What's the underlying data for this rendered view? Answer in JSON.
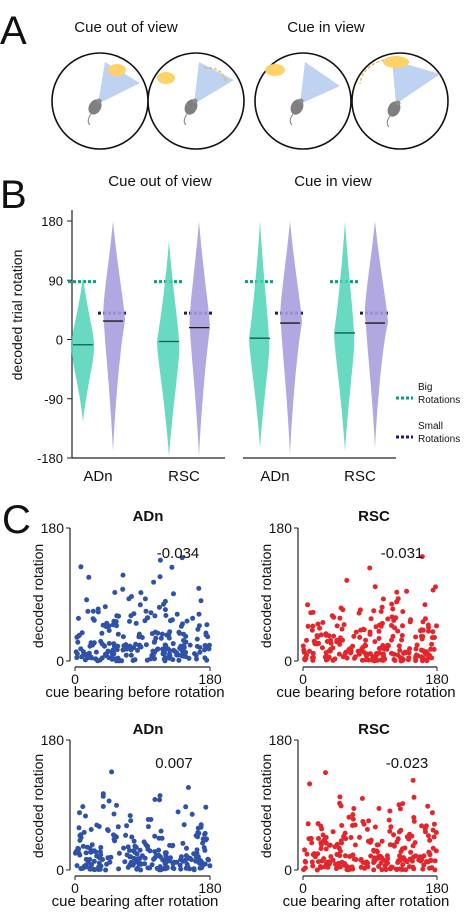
{
  "panel_a": {
    "letter": "A",
    "titles": [
      "Cue out of view",
      "Cue in view"
    ]
  },
  "panel_b": {
    "letter": "B",
    "titles": [
      "Cue out of view",
      "Cue in view"
    ],
    "legend": {
      "big": [
        "Big",
        "Rotations"
      ],
      "small": [
        "Small",
        "Rotations"
      ]
    }
  },
  "panel_c": {
    "letter": "C"
  },
  "colors": {
    "teal": "#4fd3b7",
    "teal_dash": "#00a180",
    "purple": "#a99ede",
    "navy_dash": "#1b1b7a",
    "blue_dots": "#2f52a8",
    "red_dots": "#e3262b",
    "cue_orange": "#ffd166",
    "cone_blue": "#b7cdf0"
  },
  "chart_data": [
    {
      "type": "violin",
      "panel": "B",
      "ylabel": "decoded trial rotation",
      "ylim": [
        -180,
        180
      ],
      "yticks": [
        "180",
        "90",
        "0",
        "-90",
        "-180"
      ],
      "groups": [
        {
          "title": "Cue out of view",
          "categories": [
            "ADn",
            "RSC"
          ]
        },
        {
          "title": "Cue in view",
          "categories": [
            "ADn",
            "RSC"
          ]
        }
      ],
      "series": [
        {
          "name": "Big Rotations",
          "medians": [
            -8,
            -3,
            2,
            10
          ],
          "reference": 88
        },
        {
          "name": "Small Rotations",
          "medians": [
            28,
            18,
            25,
            25
          ],
          "reference": 40
        }
      ]
    },
    {
      "type": "scatter",
      "panel": "C",
      "title": "ADn",
      "xlabel": "cue bearing before rotation",
      "ylabel": "decoded rotation",
      "xticks": [
        "0",
        "180"
      ],
      "yticks": [
        "180",
        "0"
      ],
      "annotation": "-0.034",
      "xlim": [
        0,
        180
      ],
      "ylim": [
        0,
        180
      ]
    },
    {
      "type": "scatter",
      "panel": "C",
      "title": "RSC",
      "xlabel": "cue bearing before rotation",
      "ylabel": "decoded rotation",
      "xticks": [
        "0",
        "180"
      ],
      "yticks": [
        "180",
        "0"
      ],
      "annotation": "-0.031",
      "xlim": [
        0,
        180
      ],
      "ylim": [
        0,
        180
      ]
    },
    {
      "type": "scatter",
      "panel": "C",
      "title": "ADn",
      "xlabel": "cue bearing after rotation",
      "ylabel": "decoded rotation",
      "xticks": [
        "0",
        "180"
      ],
      "yticks": [
        "180",
        "0"
      ],
      "annotation": "0.007",
      "xlim": [
        0,
        180
      ],
      "ylim": [
        0,
        180
      ]
    },
    {
      "type": "scatter",
      "panel": "C",
      "title": "RSC",
      "xlabel": "cue bearing after rotation",
      "ylabel": "decoded rotation",
      "xticks": [
        "0",
        "180"
      ],
      "yticks": [
        "180",
        "0"
      ],
      "annotation": "-0.023",
      "xlim": [
        0,
        180
      ],
      "ylim": [
        0,
        180
      ]
    }
  ]
}
